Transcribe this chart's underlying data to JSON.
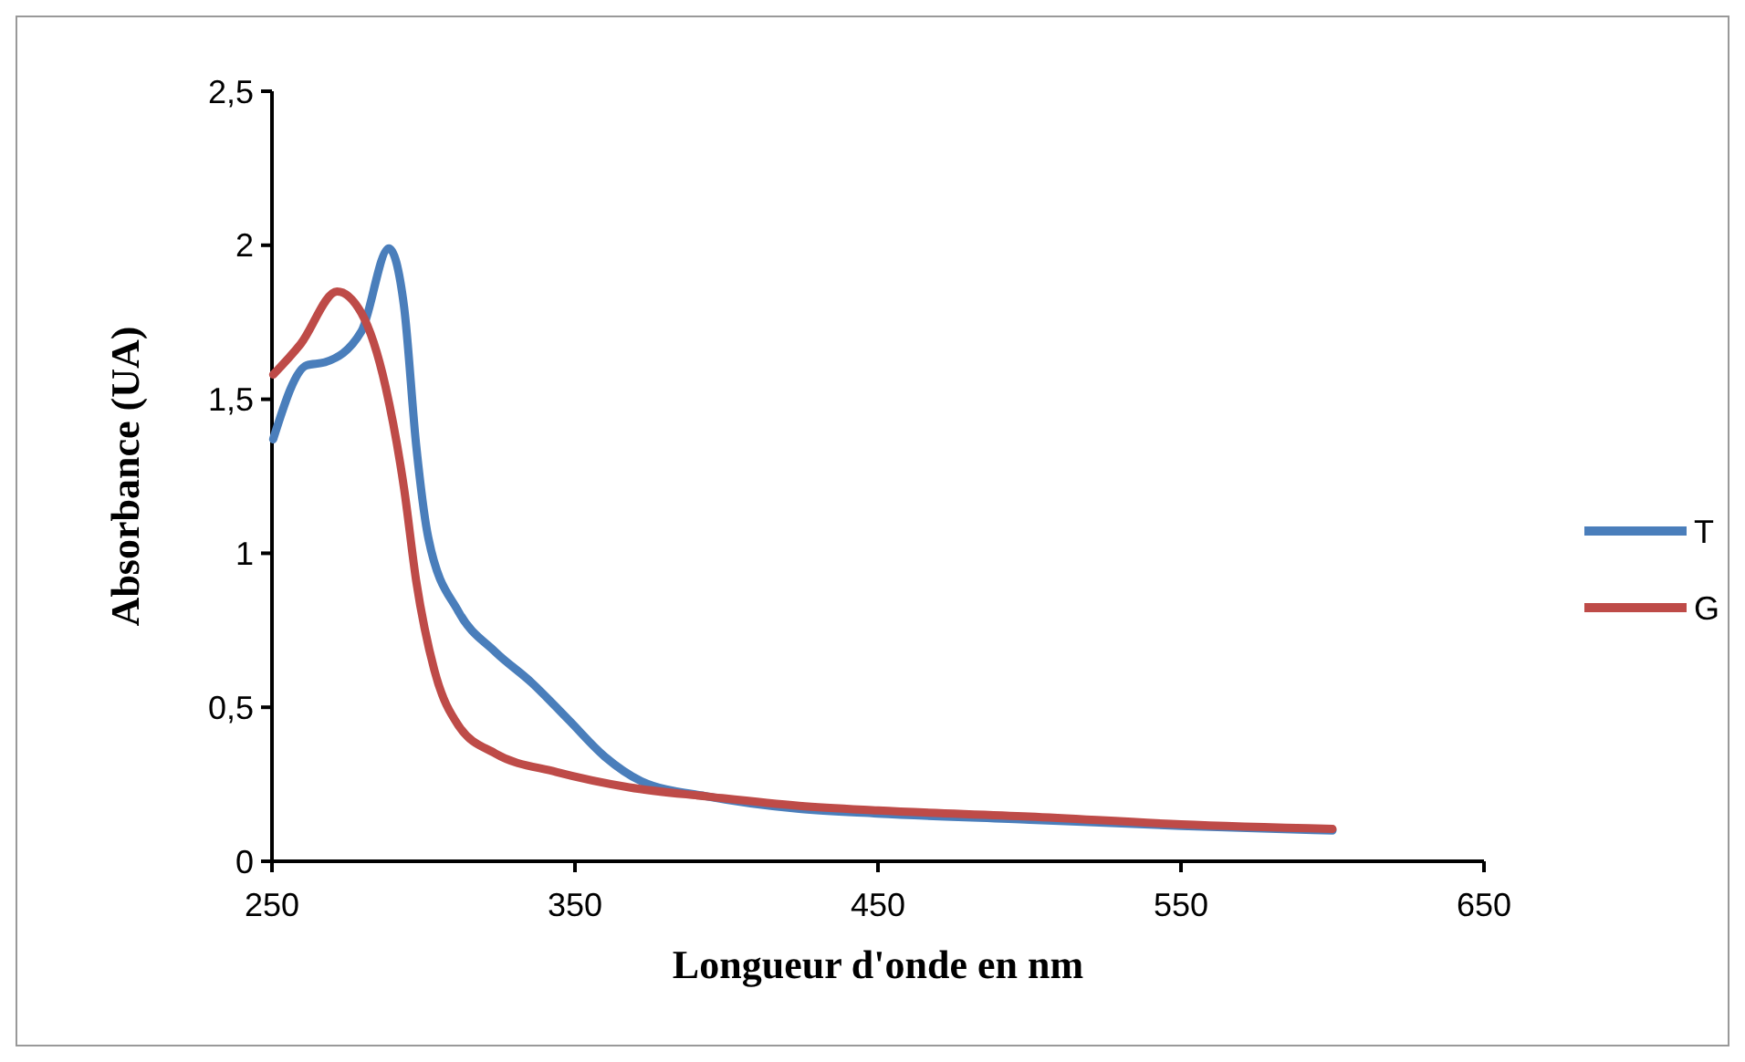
{
  "chart_data": {
    "type": "line",
    "xlabel": "Longueur d'onde en nm",
    "ylabel": "Absorbance (UA)",
    "xlim": [
      250,
      650
    ],
    "xticks": [
      250,
      350,
      450,
      550,
      650
    ],
    "ylim": [
      0,
      2.5
    ],
    "yticks": [
      0,
      {
        "value": 0.5,
        "label": "0,5"
      },
      1,
      {
        "value": 1.5,
        "label": "1,5"
      },
      2,
      {
        "value": 2.5,
        "label": "2,5"
      }
    ],
    "grid": false,
    "legend": "right",
    "marker": "none",
    "line_style": "solid",
    "series": [
      {
        "name": "T",
        "color": "#4a7ebb",
        "x": [
          250.4,
          261.4,
          267.5,
          279.5,
          288.6,
          293.6,
          297.6,
          301.6,
          311.6,
          323.7,
          335.7,
          347.8,
          359.8,
          371.9,
          394,
          424,
          450,
          500,
          550,
          600
        ],
        "values": [
          1.37,
          1.61,
          1.62,
          1.72,
          1.99,
          1.8,
          1.35,
          1.05,
          0.81,
          0.68,
          0.58,
          0.46,
          0.34,
          0.26,
          0.21,
          0.17,
          0.155,
          0.135,
          0.115,
          0.1
        ]
      },
      {
        "name": "G",
        "color": "#be4b48",
        "x": [
          250.4,
          259.5,
          271.5,
          279.5,
          287.5,
          293.6,
          297.6,
          303.6,
          311.6,
          323.7,
          343.8,
          367.9,
          394,
          424,
          450,
          500,
          550,
          600
        ],
        "values": [
          1.58,
          1.68,
          1.85,
          1.78,
          1.54,
          1.21,
          0.91,
          0.62,
          0.44,
          0.35,
          0.29,
          0.24,
          0.21,
          0.18,
          0.165,
          0.145,
          0.12,
          0.105
        ]
      }
    ]
  }
}
